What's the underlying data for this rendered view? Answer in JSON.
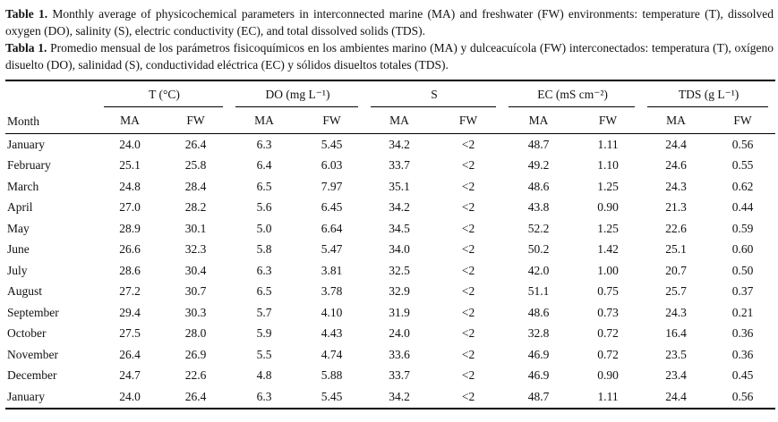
{
  "caption_en": {
    "label": "Table 1.",
    "text": "Monthly average of physicochemical parameters in interconnected marine (MA) and freshwater (FW) environments: temperature (T), dissolved oxygen (DO), salinity (S), electric conductivity (EC), and total dissolved solids (TDS)."
  },
  "caption_es": {
    "label": "Tabla 1.",
    "text": "Promedio mensual de los parámetros fisicoquímicos en los ambientes marino (MA) y dulceacuícola (FW) interconectados: temperatura (T), oxígeno disuelto (DO), salinidad (S), conductividad eléctrica (EC) y sólidos disueltos totales (TDS)."
  },
  "table": {
    "month_header": "Month",
    "groups": [
      {
        "label": "T (°C)",
        "sub": [
          "MA",
          "FW"
        ]
      },
      {
        "label": "DO (mg L⁻¹)",
        "sub": [
          "MA",
          "FW"
        ]
      },
      {
        "label": "S",
        "sub": [
          "MA",
          "FW"
        ]
      },
      {
        "label": "EC (mS cm⁻²)",
        "sub": [
          "MA",
          "FW"
        ]
      },
      {
        "label": "TDS (g L⁻¹)",
        "sub": [
          "MA",
          "FW"
        ]
      }
    ],
    "rows": [
      {
        "month": "January",
        "values": [
          "24.0",
          "26.4",
          "6.3",
          "5.45",
          "34.2",
          "<2",
          "48.7",
          "1.11",
          "24.4",
          "0.56"
        ]
      },
      {
        "month": "February",
        "values": [
          "25.1",
          "25.8",
          "6.4",
          "6.03",
          "33.7",
          "<2",
          "49.2",
          "1.10",
          "24.6",
          "0.55"
        ]
      },
      {
        "month": "March",
        "values": [
          "24.8",
          "28.4",
          "6.5",
          "7.97",
          "35.1",
          "<2",
          "48.6",
          "1.25",
          "24.3",
          "0.62"
        ]
      },
      {
        "month": "April",
        "values": [
          "27.0",
          "28.2",
          "5.6",
          "6.45",
          "34.2",
          "<2",
          "43.8",
          "0.90",
          "21.3",
          "0.44"
        ]
      },
      {
        "month": "May",
        "values": [
          "28.9",
          "30.1",
          "5.0",
          "6.64",
          "34.5",
          "<2",
          "52.2",
          "1.25",
          "22.6",
          "0.59"
        ]
      },
      {
        "month": "June",
        "values": [
          "26.6",
          "32.3",
          "5.8",
          "5.47",
          "34.0",
          "<2",
          "50.2",
          "1.42",
          "25.1",
          "0.60"
        ]
      },
      {
        "month": "July",
        "values": [
          "28.6",
          "30.4",
          "6.3",
          "3.81",
          "32.5",
          "<2",
          "42.0",
          "1.00",
          "20.7",
          "0.50"
        ]
      },
      {
        "month": "August",
        "values": [
          "27.2",
          "30.7",
          "6.5",
          "3.78",
          "32.9",
          "<2",
          "51.1",
          "0.75",
          "25.7",
          "0.37"
        ]
      },
      {
        "month": "September",
        "values": [
          "29.4",
          "30.3",
          "5.7",
          "4.10",
          "31.9",
          "<2",
          "48.6",
          "0.73",
          "24.3",
          "0.21"
        ]
      },
      {
        "month": "October",
        "values": [
          "27.5",
          "28.0",
          "5.9",
          "4.43",
          "24.0",
          "<2",
          "32.8",
          "0.72",
          "16.4",
          "0.36"
        ]
      },
      {
        "month": "November",
        "values": [
          "26.4",
          "26.9",
          "5.5",
          "4.74",
          "33.6",
          "<2",
          "46.9",
          "0.72",
          "23.5",
          "0.36"
        ]
      },
      {
        "month": "December",
        "values": [
          "24.7",
          "22.6",
          "4.8",
          "5.88",
          "33.7",
          "<2",
          "46.9",
          "0.90",
          "23.4",
          "0.45"
        ]
      },
      {
        "month": "January",
        "values": [
          "24.0",
          "26.4",
          "6.3",
          "5.45",
          "34.2",
          "<2",
          "48.7",
          "1.11",
          "24.4",
          "0.56"
        ]
      }
    ]
  },
  "colors": {
    "background": "#ffffff",
    "text": "#111111",
    "rule": "#000000"
  }
}
